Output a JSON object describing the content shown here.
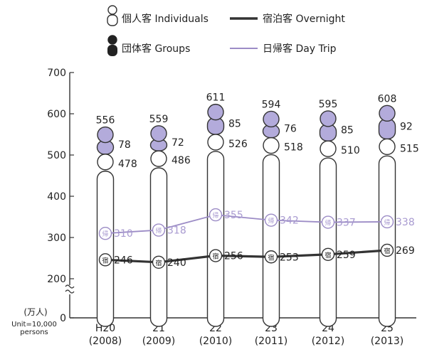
{
  "legend": {
    "individuals": "個人客 Individuals",
    "groups": "団体客 Groups",
    "overnight": "宿泊客 Overnight",
    "daytrip": "日帰客 Day Trip"
  },
  "colors": {
    "group_fill": "#b3abdb",
    "daytrip_line": "#9c8cc6",
    "daytrip_text": "#a89ad0",
    "overnight_line": "#333333",
    "axis": "#333333"
  },
  "chart_data": {
    "type": "bar",
    "unit_label_jp": "(万人)",
    "unit_label_en_1": "Unit=10,000",
    "unit_label_en_2": "persons",
    "y_axis": {
      "min": 0,
      "max": 700,
      "ticks": [
        "0",
        "200",
        "300",
        "400",
        "500",
        "600",
        "700"
      ],
      "tick_values": [
        0,
        200,
        300,
        400,
        500,
        600,
        700
      ],
      "broken": true
    },
    "categories": [
      {
        "label": "H20",
        "year": "(2008)"
      },
      {
        "label": "21",
        "year": "(2009)"
      },
      {
        "label": "22",
        "year": "(2010)"
      },
      {
        "label": "23",
        "year": "(2011)"
      },
      {
        "label": "24",
        "year": "(2012)"
      },
      {
        "label": "25",
        "year": "(2013)"
      }
    ],
    "totals": [
      556,
      559,
      611,
      594,
      595,
      608
    ],
    "individuals": [
      478,
      486,
      526,
      518,
      510,
      515
    ],
    "groups": [
      78,
      72,
      85,
      76,
      85,
      92
    ],
    "series": [
      {
        "name": "宿泊客 Overnight",
        "marker": "宿",
        "values": [
          246,
          240,
          256,
          253,
          259,
          269
        ]
      },
      {
        "name": "日帰客 Day Trip",
        "marker": "帰",
        "values": [
          310,
          318,
          355,
          342,
          337,
          338
        ]
      }
    ]
  }
}
